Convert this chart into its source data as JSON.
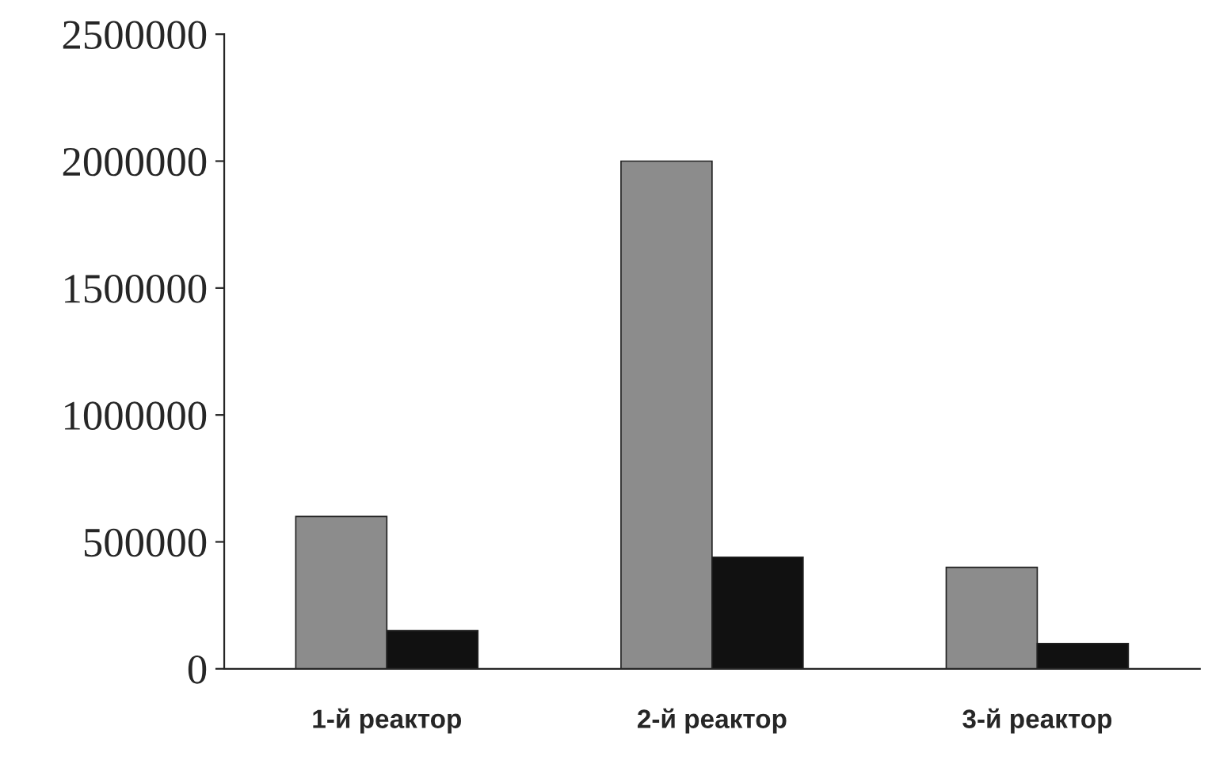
{
  "chart_data": {
    "type": "bar",
    "categories": [
      "1-й реактор",
      "2-й реактор",
      "3-й реактор"
    ],
    "series": [
      {
        "color": "#8c8c8c",
        "values": [
          600000,
          2000000,
          400000
        ]
      },
      {
        "color": "#111111",
        "values": [
          150000,
          440000,
          100000
        ]
      }
    ],
    "ylim": [
      0,
      2500000
    ],
    "yticks": [
      0,
      500000,
      1000000,
      1500000,
      2000000,
      2500000
    ],
    "grid": false,
    "legend": false
  }
}
